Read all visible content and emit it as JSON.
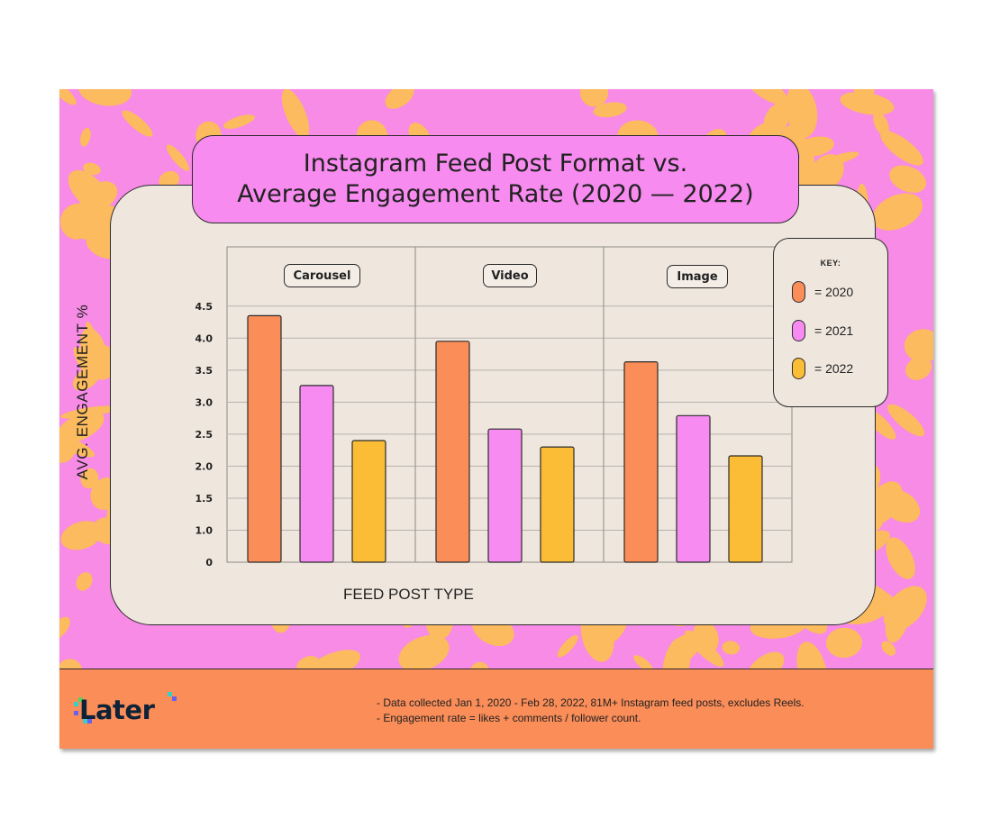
{
  "title": {
    "line1": "Instagram Feed Post Format vs.",
    "line2": "Average Engagement Rate (2020 — 2022)"
  },
  "colors": {
    "2020": "#fa8d58",
    "2021": "#f78bf2",
    "2022": "#fbbd35",
    "background_pink": "#f78be6",
    "background_orange": "#fbbb5e",
    "panel": "#efe7de",
    "footer": "#fa8d58"
  },
  "chart_data": {
    "type": "bar",
    "title": "Instagram Feed Post Format vs. Average Engagement Rate (2020 — 2022)",
    "categories": [
      "Carousel",
      "Video",
      "Image"
    ],
    "series": [
      {
        "name": "2020",
        "values": [
          4.35,
          3.95,
          3.63
        ]
      },
      {
        "name": "2021",
        "values": [
          3.26,
          2.58,
          2.79
        ]
      },
      {
        "name": "2022",
        "values": [
          2.4,
          2.3,
          2.16
        ]
      }
    ],
    "xlabel": "FEED POST TYPE",
    "ylabel": "AVG. ENGAGEMENT %",
    "yticks": [
      "0",
      "1.0",
      "1.5",
      "2.0",
      "2.5",
      "3.0",
      "3.5",
      "4.0",
      "4.5"
    ],
    "ylim": [
      0.5,
      4.75
    ],
    "grid": true,
    "legend_title": "KEY:",
    "legend_labels": [
      "= 2020",
      "= 2021",
      "= 2022"
    ],
    "legend_position": "right"
  },
  "footer": {
    "logo_text": "Later",
    "note1": "- Data collected Jan 1, 2020 - Feb 28, 2022, 81M+ Instagram feed posts, excludes Reels.",
    "note2": "- Engagement rate = likes + comments / follower count."
  }
}
